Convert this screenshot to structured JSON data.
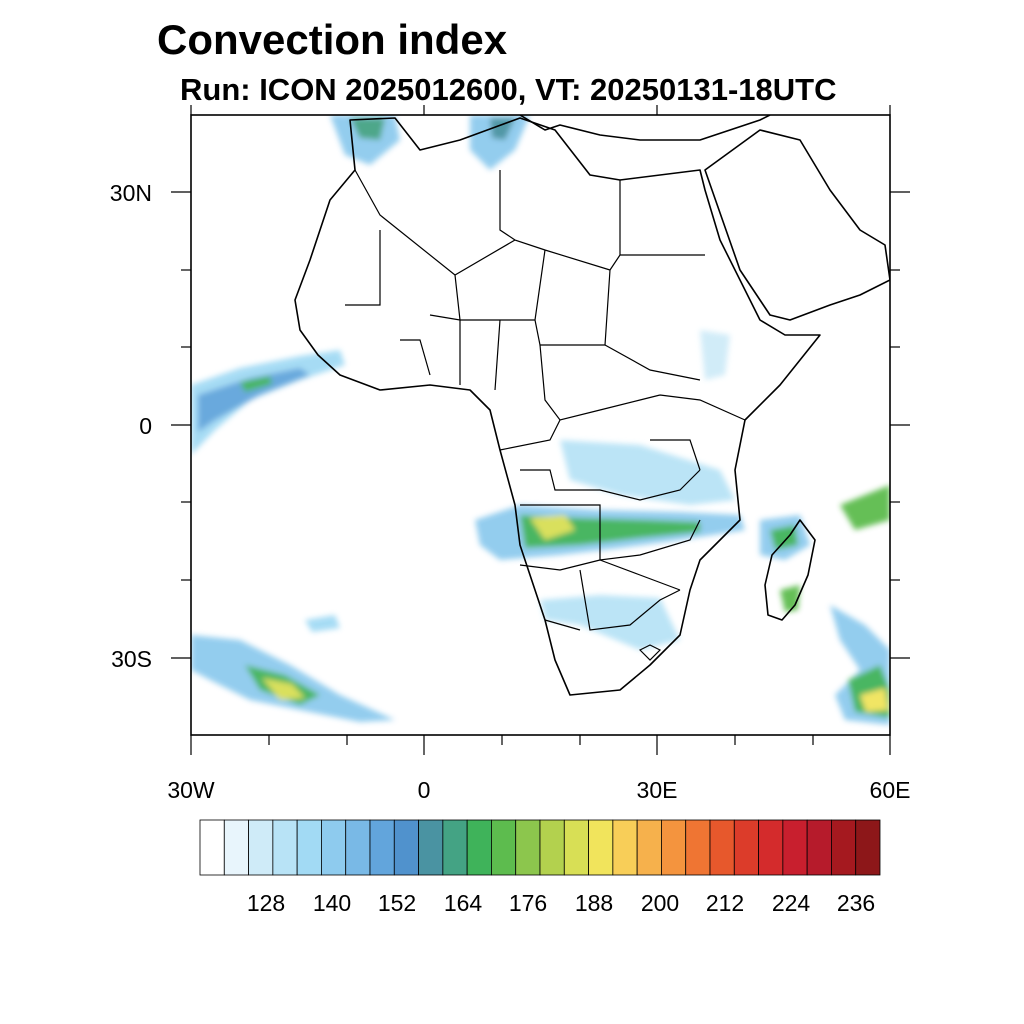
{
  "title": "Convection index",
  "subtitle": "Run: ICON 2025012600,  VT: 20250131-18UTC",
  "axes": {
    "lat_labels": [
      "30N",
      "0",
      "30S"
    ],
    "lon_labels": [
      "30W",
      "0",
      "30E",
      "60E"
    ],
    "extent": {
      "lon_min": -30,
      "lon_max": 60,
      "lat_min": -40,
      "lat_max": 40
    }
  },
  "colorbar": {
    "labels": [
      "128",
      "140",
      "152",
      "164",
      "176",
      "188",
      "200",
      "212",
      "224",
      "236"
    ],
    "colors": [
      "#ffffff",
      "#e8f5fc",
      "#cfebf8",
      "#b8e3f6",
      "#a2daf4",
      "#8ecbee",
      "#79b9e6",
      "#62a5dc",
      "#5092cd",
      "#4a93a2",
      "#44a384",
      "#3fb35a",
      "#5dbc4e",
      "#8cc64d",
      "#b3d14e",
      "#d8df55",
      "#f1e45c",
      "#f8ce58",
      "#f6b14c",
      "#f4943e",
      "#ef7533",
      "#e7582c",
      "#dc3c2a",
      "#d42b2c",
      "#c81f2e",
      "#b61b2b",
      "#a5191f",
      "#8d1719"
    ]
  },
  "fields": {
    "regions": [
      {
        "name": "atlantic-itcz",
        "intensity": "moderate"
      },
      {
        "name": "zambia-angola-band",
        "intensity": "high"
      },
      {
        "name": "south-atlantic-front",
        "intensity": "high"
      },
      {
        "name": "mozambique-channel",
        "intensity": "moderate"
      },
      {
        "name": "southwest-indian-ocean",
        "intensity": "high"
      }
    ]
  }
}
